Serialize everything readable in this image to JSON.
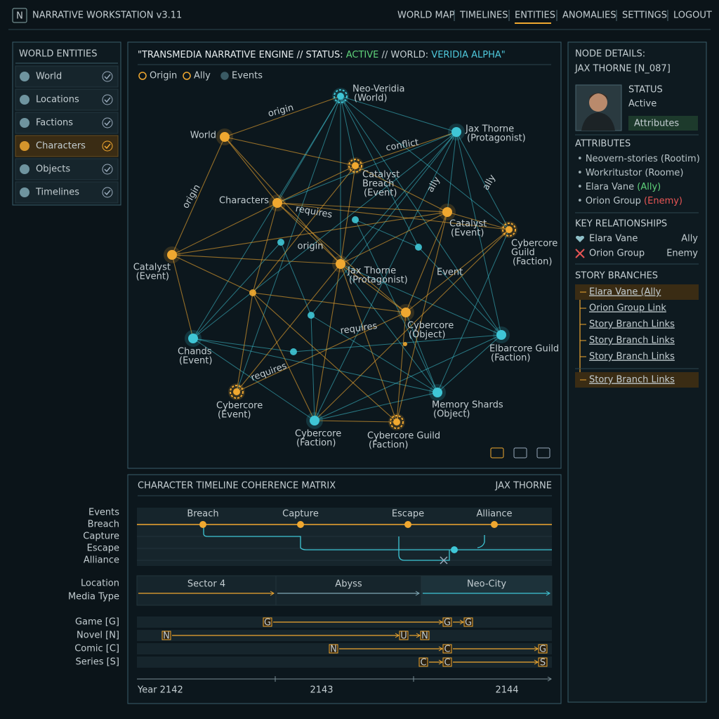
{
  "header": {
    "logo": "N",
    "title": "NARRATIVE WORKSTATION v3.11",
    "nav": [
      "WORLD MAP",
      "TIMELINES",
      "ENTITIES",
      "ANOMALIES",
      "SETTINGS",
      "LOGOUT"
    ]
  },
  "sidebar": {
    "title": "WORLD ENTITIES",
    "items": [
      "World",
      "Locations",
      "Factions",
      "Characters",
      "Objects",
      "Timelines"
    ]
  },
  "graph": {
    "title": [
      "\"TRANSMEDIA NARRATIVE ENGINE // STATUS: ",
      "ACTIVE",
      " // WORLD: ",
      "VERIDIA ALPHA\""
    ],
    "legend": [
      "Origin",
      "Ally",
      "Events"
    ],
    "nodes": [
      {
        "label": "Neo-Veridia",
        "sub": "(World)"
      },
      {
        "label": "World"
      },
      {
        "label": "Jax Thorne",
        "sub": "(Protagonist)"
      },
      {
        "label": [
          "Catalyst",
          "Breach"
        ],
        "sub": "(Event)"
      },
      {
        "label": "Characters"
      },
      {
        "label": "Catalyst",
        "sub": "(Event)"
      },
      {
        "label": [
          "Cybercore",
          "Guild"
        ],
        "sub": "(Faction)"
      },
      {
        "label": "Catalyst",
        "sub": "(Event)"
      },
      {
        "label": "Jax Thorne",
        "sub": "(Protagonist)"
      },
      {
        "label": "Event"
      },
      {
        "label": "Chands",
        "sub": "(Event)"
      },
      {
        "label": "Cybercore",
        "sub": "(Object)"
      },
      {
        "label": "Elbarcore Guild",
        "sub": "(Faction)"
      },
      {
        "label": "Cybercore",
        "sub": "(Event)"
      },
      {
        "label": "Cybercore",
        "sub": "(Faction)"
      },
      {
        "label": "Cybercore Guild",
        "sub": "(Faction)"
      },
      {
        "label": "Memory Shards",
        "sub": "(Object)"
      }
    ],
    "edge_labels": [
      "origin",
      "conflict",
      "origin",
      "requires",
      "origin",
      "ally",
      "ally",
      "requires",
      "requires"
    ]
  },
  "details": {
    "title": "NODE DETAILS:",
    "node": "JAX THORNE [N_087]",
    "status_label": "STATUS",
    "status": "Active",
    "button": "Attributes",
    "attributes_title": "ATTRIBUTES",
    "attributes": [
      {
        "name": "Neovern-stories (Rootim)"
      },
      {
        "name": "Workritustor (Roome)"
      },
      {
        "name": "Elara Vane",
        "tag": "(Ally)"
      },
      {
        "name": "Orion Group",
        "tag": "(Enemy)"
      }
    ],
    "relationships_title": "KEY RELATIONSHIPS",
    "relationships": [
      {
        "name": "Elara Vane",
        "type": "Ally"
      },
      {
        "name": "Orion Group",
        "type": "Enemy"
      }
    ],
    "branches_title": "STORY BRANCHES",
    "branches": [
      "Elara Vane (Ally",
      "Orion Group Link",
      "Story Branch Links",
      "Story Branch Links",
      "Story Branch Links",
      "Story Branch Links"
    ]
  },
  "timeline": {
    "title": "CHARACTER TIMELINE COHERENCE MATRIX",
    "character": "JAX THORNE",
    "row_labels": [
      "Events",
      "Breach",
      "Capture",
      "Escape",
      "Alliance"
    ],
    "events": [
      "Breach",
      "Capture",
      "Escape",
      "Alliance"
    ],
    "location_labels": [
      "Location",
      "Media Type"
    ],
    "locations": [
      "Sector 4",
      "Abyss",
      "Neo-City"
    ],
    "media": [
      {
        "label": "Game [G]",
        "chips": [
          "G",
          "G",
          "G"
        ]
      },
      {
        "label": "Novel [N]",
        "chips": [
          "N",
          "U",
          "N"
        ]
      },
      {
        "label": "Comic [C]",
        "chips": [
          "N",
          "C",
          "G"
        ]
      },
      {
        "label": "Series [S]",
        "chips": [
          "C",
          "C",
          "S"
        ]
      }
    ],
    "years": [
      "Year 2142",
      "2143",
      "2144"
    ]
  }
}
